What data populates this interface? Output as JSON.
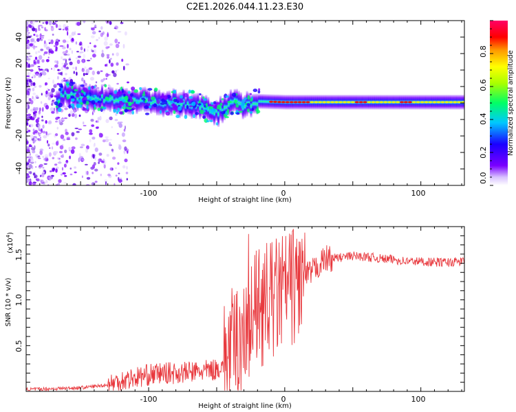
{
  "title": "C2E1.2026.044.11.23.E30",
  "chart_data": [
    {
      "type": "heatmap",
      "xlabel": "Height of straight line (km)",
      "ylabel": "Frequency (Hz)",
      "xlim": [
        -190,
        132
      ],
      "ylim": [
        -50,
        50
      ],
      "x_ticks": [
        "-100",
        "0",
        "100"
      ],
      "y_ticks": [
        "40",
        "20",
        "0",
        "-20",
        "-40"
      ],
      "colorbar": {
        "label": "Normalized spectral amplitude",
        "range": [
          0,
          1
        ],
        "ticks": [
          "0.0",
          "0.2",
          "0.4",
          "0.6",
          "0.8"
        ]
      },
      "band_trace": [
        {
          "x": -165,
          "f": 5
        },
        {
          "x": -140,
          "f": 3
        },
        {
          "x": -120,
          "f": 2
        },
        {
          "x": -100,
          "f": 1
        },
        {
          "x": -80,
          "f": 0
        },
        {
          "x": -60,
          "f": -2
        },
        {
          "x": -50,
          "f": -6
        },
        {
          "x": -40,
          "f": 1
        },
        {
          "x": -30,
          "f": -2
        },
        {
          "x": -20,
          "f": 1
        },
        {
          "x": 0,
          "f": 0.5
        },
        {
          "x": 20,
          "f": 0.5
        },
        {
          "x": 60,
          "f": 0.5
        },
        {
          "x": 100,
          "f": 0.5
        },
        {
          "x": 132,
          "f": 0.5
        }
      ]
    },
    {
      "type": "line",
      "xlabel": "Height of straight line (km)",
      "ylabel": "SNR (10 * v/v)",
      "y_scale_label": "(x10",
      "y_scale_exp": "4",
      "xlim": [
        -190,
        132
      ],
      "ylim": [
        0,
        1.8
      ],
      "x_ticks": [
        "-100",
        "0",
        "100"
      ],
      "y_ticks": [
        "0.5",
        "1.0",
        "1.5"
      ],
      "line_color": "#e8383d",
      "series": [
        {
          "name": "SNR",
          "x": [
            -190,
            -170,
            -150,
            -130,
            -120,
            -110,
            -100,
            -90,
            -80,
            -70,
            -60,
            -50,
            -45,
            -40,
            -35,
            -30,
            -25,
            -20,
            -15,
            -10,
            -5,
            0,
            5,
            10,
            15,
            20,
            25,
            30,
            40,
            50,
            60,
            70,
            80,
            90,
            100,
            110,
            120,
            132
          ],
          "y": [
            0.02,
            0.03,
            0.04,
            0.07,
            0.12,
            0.15,
            0.18,
            0.2,
            0.2,
            0.21,
            0.22,
            0.24,
            0.3,
            0.45,
            0.55,
            0.7,
            0.82,
            0.9,
            0.95,
            1.0,
            1.05,
            1.1,
            1.15,
            1.2,
            1.25,
            1.3,
            1.38,
            1.45,
            1.46,
            1.48,
            1.47,
            1.45,
            1.44,
            1.42,
            1.42,
            1.41,
            1.41,
            1.42
          ]
        }
      ]
    }
  ]
}
